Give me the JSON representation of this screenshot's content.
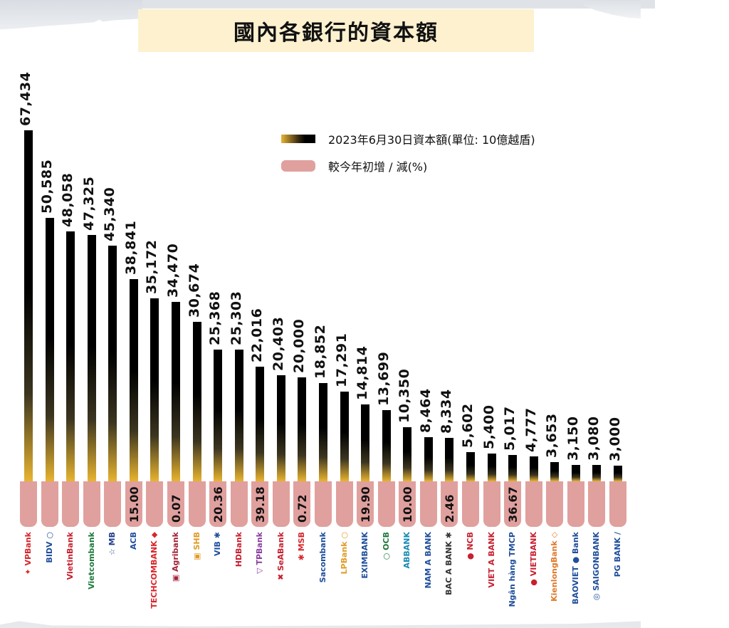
{
  "title": "國內各銀行的資本額",
  "legend": {
    "capital_label": "2023年6月30日資本額(單位: 10億越盾)",
    "change_label": "較今年初增 / 減(%)"
  },
  "colors": {
    "bar_top": "#000000",
    "bar_bottom": "#e8b430",
    "pink": "#e0a09e",
    "title_bg": "#fdf1cf"
  },
  "chart_data": {
    "type": "bar",
    "title": "國內各銀行的資本額",
    "xlabel": "",
    "ylabel": "資本額(單位: 10億越盾)",
    "legend_position": "upper-right",
    "grid": false,
    "categories": [
      "VPBank",
      "BIDV",
      "VietinBank",
      "Vietcombank",
      "MB",
      "ACB",
      "Techcombank",
      "Agribank",
      "SHB",
      "VIB",
      "HDBank",
      "TPBank",
      "SeABank",
      "MSB",
      "Sacombank",
      "LPBank",
      "Eximbank",
      "OCB",
      "ABBANK",
      "Nam A Bank",
      "Bac A Bank",
      "NCB",
      "Viet A Bank",
      "Kienlongbank",
      "Vietbank",
      "Saigonbank",
      "BaoViet Bank",
      "Saigonbank2",
      "PG Bank"
    ],
    "series": [
      {
        "name": "2023年6月30日資本額(單位: 10億越盾)",
        "values": [
          67434,
          50585,
          48058,
          47325,
          45340,
          38841,
          35172,
          34470,
          30674,
          25368,
          25303,
          22016,
          20403,
          20000,
          18852,
          17291,
          14814,
          13699,
          10350,
          8464,
          8334,
          5602,
          5400,
          5017,
          4777,
          3653,
          3150,
          3080,
          3000
        ]
      },
      {
        "name": "較今年初增 / 減(%)",
        "values": [
          null,
          null,
          null,
          null,
          null,
          15.0,
          null,
          0.07,
          null,
          20.36,
          null,
          39.18,
          null,
          0.72,
          null,
          null,
          19.9,
          null,
          10.0,
          null,
          2.46,
          null,
          null,
          36.67,
          null,
          null,
          null,
          null,
          null
        ]
      }
    ],
    "ylim": [
      0,
      67434
    ]
  },
  "banks": [
    {
      "name": "VPBank",
      "value": "67,434",
      "v": 67434,
      "pct": "",
      "logo": "✦ VPBank",
      "color": "#d8262c"
    },
    {
      "name": "BIDV",
      "value": "50,585",
      "v": 50585,
      "pct": "",
      "logo": "BIDV ○",
      "color": "#1f4e9c"
    },
    {
      "name": "VietinBank",
      "value": "48,058",
      "v": 48058,
      "pct": "",
      "logo": "VietinBank",
      "color": "#c8202f"
    },
    {
      "name": "Vietcombank",
      "value": "47,325",
      "v": 47325,
      "pct": "",
      "logo": "Vietcombank",
      "color": "#1d7a3b"
    },
    {
      "name": "MB",
      "value": "45,340",
      "v": 45340,
      "pct": "",
      "logo": "☆ MB",
      "color": "#1f3f8f"
    },
    {
      "name": "ACB",
      "value": "38,841",
      "v": 38841,
      "pct": "15.00",
      "logo": "ACB",
      "color": "#1f4e9c"
    },
    {
      "name": "Techcombank",
      "value": "35,172",
      "v": 35172,
      "pct": "",
      "logo": "TECHCOMBANK ◆",
      "color": "#d8262c"
    },
    {
      "name": "Agribank",
      "value": "34,470",
      "v": 34470,
      "pct": "0.07",
      "logo": "▣ Agribank",
      "color": "#a3243a"
    },
    {
      "name": "SHB",
      "value": "30,674",
      "v": 30674,
      "pct": "",
      "logo": "▣ SHB",
      "color": "#e29b24"
    },
    {
      "name": "VIB",
      "value": "25,368",
      "v": 25368,
      "pct": "20.36",
      "logo": "VIB ✱",
      "color": "#1f4e9c"
    },
    {
      "name": "HDBank",
      "value": "25,303",
      "v": 25303,
      "pct": "",
      "logo": "HDBank",
      "color": "#c8202f"
    },
    {
      "name": "TPBank",
      "value": "22,016",
      "v": 22016,
      "pct": "39.18",
      "logo": "▽ TPBank",
      "color": "#8b3fa0"
    },
    {
      "name": "SeABank",
      "value": "20,403",
      "v": 20403,
      "pct": "",
      "logo": "✖ SeABank",
      "color": "#c8202f"
    },
    {
      "name": "MSB",
      "value": "20,000",
      "v": 20000,
      "pct": "0.72",
      "logo": "✱ MSB",
      "color": "#d8262c"
    },
    {
      "name": "Sacombank",
      "value": "18,852",
      "v": 18852,
      "pct": "",
      "logo": "Sacombank",
      "color": "#1f4e9c"
    },
    {
      "name": "LPBank",
      "value": "17,291",
      "v": 17291,
      "pct": "",
      "logo": "LPBank ○",
      "color": "#e29b24"
    },
    {
      "name": "Eximbank",
      "value": "14,814",
      "v": 14814,
      "pct": "19.90",
      "logo": "EXIMBANK",
      "color": "#1f4e9c"
    },
    {
      "name": "OCB",
      "value": "13,699",
      "v": 13699,
      "pct": "",
      "logo": "○ OCB",
      "color": "#1d7a3b"
    },
    {
      "name": "ABBANK",
      "value": "10,350",
      "v": 10350,
      "pct": "10.00",
      "logo": "ABBANK",
      "color": "#1a8bb5"
    },
    {
      "name": "Nam A Bank",
      "value": "8,464",
      "v": 8464,
      "pct": "",
      "logo": "NAM A BANK",
      "color": "#1f4e9c"
    },
    {
      "name": "Bac A Bank",
      "value": "8,334",
      "v": 8334,
      "pct": "2.46",
      "logo": "BAC A BANK ✱",
      "color": "#333333"
    },
    {
      "name": "NCB",
      "value": "5,602",
      "v": 5602,
      "pct": "",
      "logo": "● NCB",
      "color": "#c8202f"
    },
    {
      "name": "Viet A Bank",
      "value": "5,400",
      "v": 5400,
      "pct": "",
      "logo": "VIET A BANK",
      "color": "#c8202f"
    },
    {
      "name": "Kienlongbank",
      "value": "5,017",
      "v": 5017,
      "pct": "36.67",
      "logo": "Ngân hàng TMCP",
      "color": "#1f4e9c"
    },
    {
      "name": "Vietbank",
      "value": "4,777",
      "v": 4777,
      "pct": "",
      "logo": "● VIETBANK",
      "color": "#c8202f"
    },
    {
      "name": "KienlongBank",
      "value": "3,653",
      "v": 3653,
      "pct": "",
      "logo": "KienlongBank ◇",
      "color": "#e07a2b"
    },
    {
      "name": "BaoViet Bank",
      "value": "3,150",
      "v": 3150,
      "pct": "",
      "logo": "BAOVIET ● Bank",
      "color": "#1f4e9c"
    },
    {
      "name": "Saigonbank",
      "value": "3,080",
      "v": 3080,
      "pct": "",
      "logo": "◎ SAIGONBANK",
      "color": "#1f4e9c"
    },
    {
      "name": "PG Bank",
      "value": "3,000",
      "v": 3000,
      "pct": "",
      "logo": "PG BANK /",
      "color": "#1f4e9c"
    }
  ]
}
